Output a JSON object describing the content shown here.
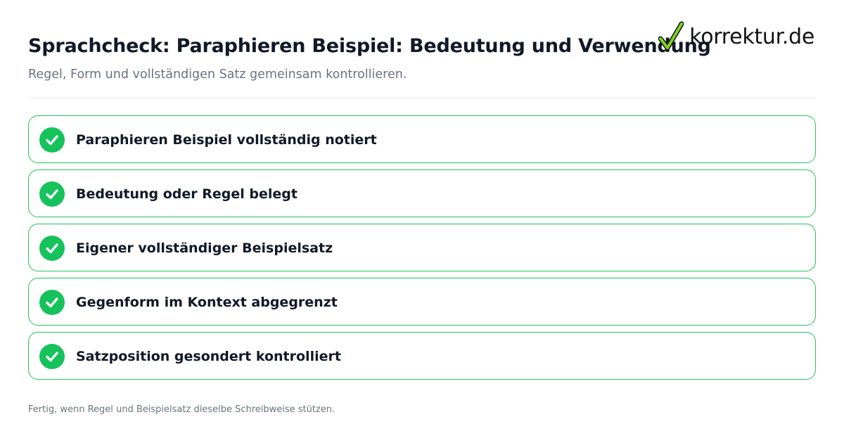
{
  "header": {
    "title": "Sprachcheck: Paraphieren Beispiel: Bedeutung und Verwendung",
    "subtitle": "Regel, Form und vollständigen Satz gemeinsam kontrollieren."
  },
  "logo": {
    "text": "korrektur.de",
    "icon": "checkmark-icon",
    "check_color": "#7ed321"
  },
  "checklist": {
    "items": [
      {
        "label": "Paraphieren Beispiel vollständig notiert",
        "checked": true,
        "icon": "check-circle-icon"
      },
      {
        "label": "Bedeutung oder Regel belegt",
        "checked": true,
        "icon": "check-circle-icon"
      },
      {
        "label": "Eigener vollständiger Beispielsatz",
        "checked": true,
        "icon": "check-circle-icon"
      },
      {
        "label": "Gegenform im Kontext abgegrenzt",
        "checked": true,
        "icon": "check-circle-icon"
      },
      {
        "label": "Satzposition gesondert kontrolliert",
        "checked": true,
        "icon": "check-circle-icon"
      }
    ]
  },
  "footer": {
    "note": "Fertig, wenn Regel und Beispielsatz dieselbe Schreibweise stützen."
  },
  "colors": {
    "accent_green": "#16c25b",
    "border_green": "#22c55e",
    "title_text": "#111827",
    "muted_text": "#6b7280"
  }
}
